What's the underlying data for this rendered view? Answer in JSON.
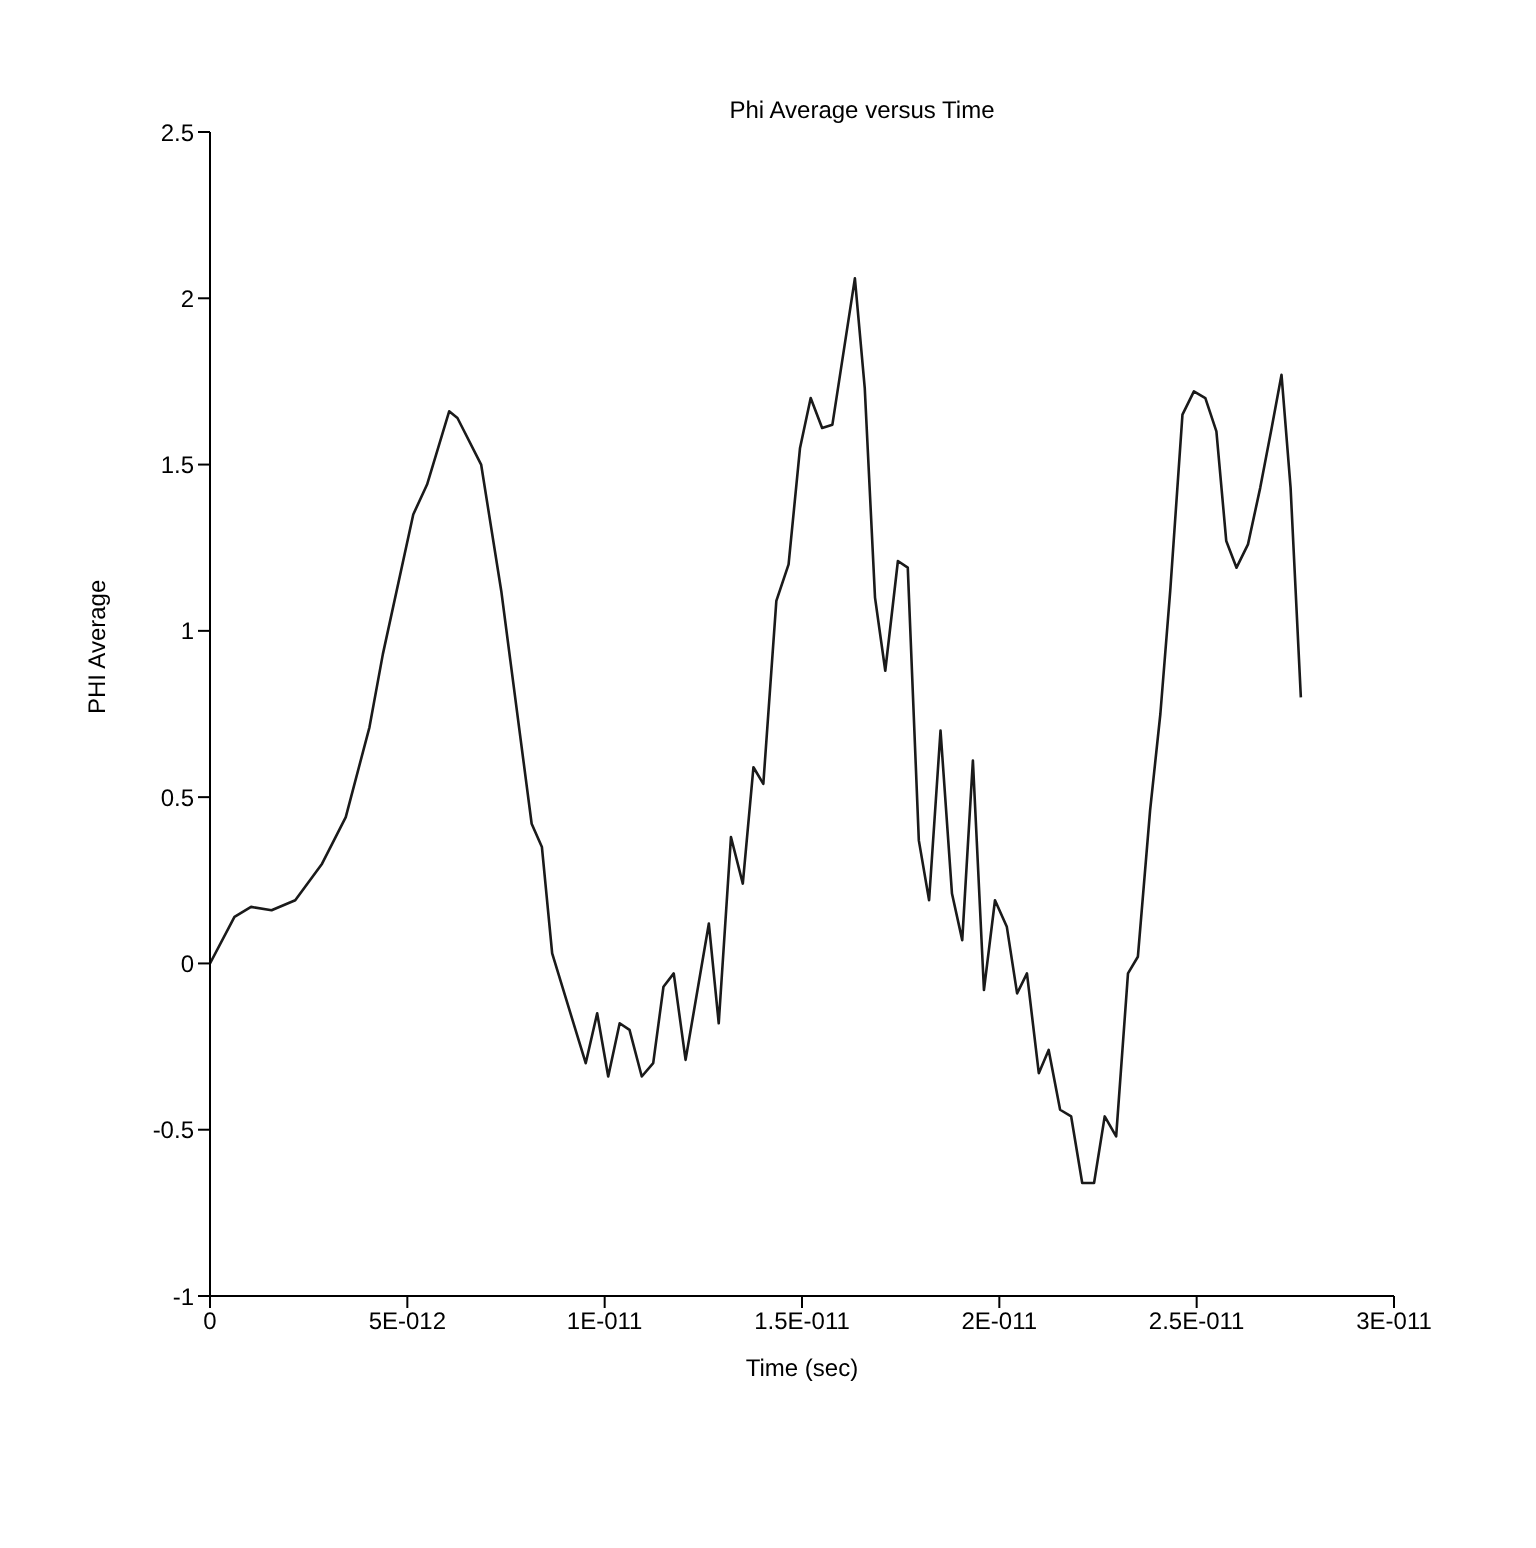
{
  "chart_data": {
    "type": "line",
    "title": "Phi Average versus Time",
    "xlabel": "Time (sec)",
    "ylabel": "PHI Average",
    "x": [
      0,
      6.2e-13,
      1.04e-12,
      1.56e-12,
      2.16e-12,
      2.84e-12,
      3.44e-12,
      4.04e-12,
      4.38e-12,
      5.15e-12,
      5.5e-12,
      6.06e-12,
      6.27e-12,
      6.87e-12,
      7.38e-12,
      8.15e-12,
      8.41e-12,
      8.67e-12,
      9.52e-12,
      9.81e-12,
      1.009e-11,
      1.038e-11,
      1.063e-11,
      1.094e-11,
      1.123e-11,
      1.149e-11,
      1.175e-11,
      1.205e-11,
      1.264e-11,
      1.289e-11,
      1.32e-11,
      1.35e-11,
      1.377e-11,
      1.402e-11,
      1.435e-11,
      1.466e-11,
      1.495e-11,
      1.522e-11,
      1.551e-11,
      1.577e-11,
      1.634e-11,
      1.659e-11,
      1.685e-11,
      1.711e-11,
      1.743e-11,
      1.768e-11,
      1.796e-11,
      1.822e-11,
      1.851e-11,
      1.88e-11,
      1.906e-11,
      1.933e-11,
      1.961e-11,
      1.989e-11,
      2.019e-11,
      2.045e-11,
      2.07e-11,
      2.1e-11,
      2.125e-11,
      2.154e-11,
      2.182e-11,
      2.21e-11,
      2.24e-11,
      2.267e-11,
      2.296e-11,
      2.326e-11,
      2.351e-11,
      2.382e-11,
      2.408e-11,
      2.433e-11,
      2.464e-11,
      2.493e-11,
      2.522e-11,
      2.55e-11,
      2.575e-11,
      2.601e-11,
      2.63e-11,
      2.661e-11,
      2.69e-11,
      2.715e-11,
      2.738e-11,
      2.764e-11
    ],
    "series": [
      {
        "color": "#1a1a1a",
        "values": [
          0,
          0.14,
          0.17,
          0.16,
          0.19,
          0.3,
          0.44,
          0.71,
          0.93,
          1.35,
          1.44,
          1.66,
          1.64,
          1.5,
          1.12,
          0.42,
          0.35,
          0.03,
          -0.3,
          -0.15,
          -0.34,
          -0.18,
          -0.2,
          -0.34,
          -0.3,
          -0.07,
          -0.03,
          -0.29,
          0.12,
          -0.18,
          0.38,
          0.24,
          0.59,
          0.54,
          1.09,
          1.2,
          1.55,
          1.7,
          1.61,
          1.62,
          2.06,
          1.73,
          1.1,
          0.88,
          1.21,
          1.19,
          0.37,
          0.19,
          0.7,
          0.21,
          0.07,
          0.61,
          -0.08,
          0.19,
          0.11,
          -0.09,
          -0.03,
          -0.33,
          -0.26,
          -0.44,
          -0.46,
          -0.66,
          -0.66,
          -0.46,
          -0.52,
          -0.03,
          0.02,
          0.46,
          0.75,
          1.12,
          1.65,
          1.72,
          1.7,
          1.6,
          1.27,
          1.19,
          1.26,
          1.43,
          1.61,
          1.77,
          1.43,
          0.8
        ]
      }
    ],
    "xlim": [
      0,
      3e-11
    ],
    "xticks": [
      0,
      {
        "value": 5e-12,
        "label": "5E-012"
      },
      {
        "value": 1e-11,
        "label": "1E-011"
      },
      {
        "value": 1.5e-11,
        "label": "1.5E-011"
      },
      {
        "value": 2e-11,
        "label": "2E-011"
      },
      {
        "value": 2.5e-11,
        "label": "2.5E-011"
      },
      {
        "value": 3e-11,
        "label": "3E-011"
      }
    ],
    "ylim": [
      -1,
      2.5
    ],
    "yticks": [
      -1,
      -0.5,
      0,
      0.5,
      1,
      1.5,
      2,
      2.5
    ],
    "grid": false,
    "legend": false,
    "marker": "none",
    "line_style": "solid"
  }
}
